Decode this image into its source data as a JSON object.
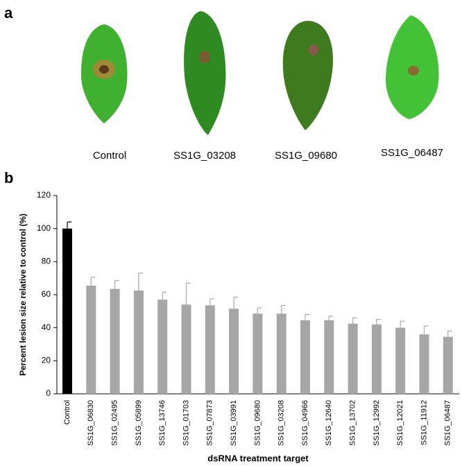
{
  "panel_a": {
    "label": "a",
    "captions": [
      "Control",
      "SS1G_03208",
      "SS1G_09680",
      "SS1G_06487"
    ]
  },
  "panel_b": {
    "label": "b"
  },
  "chart_data": {
    "type": "bar",
    "y_label": "Percent lesion size relative to control (%)",
    "x_label": "dsRNA treatment target",
    "categories": [
      "Control",
      "SS1G_06830",
      "SS1G_02495",
      "SS1G_05899",
      "SS1G_13746",
      "SS1G_01703",
      "SS1G_07873",
      "SS1G_03991",
      "SS1G_09680",
      "SS1G_03208",
      "SS1G_04966",
      "SS1G_12640",
      "SS1G_13702",
      "SS1G_12992",
      "SS1G_12021",
      "SS1G_11912",
      "SS1G_06487"
    ],
    "values": [
      100,
      65.5,
      63.5,
      62.5,
      57,
      54,
      53.5,
      51.5,
      48.5,
      48.5,
      44.5,
      44.5,
      42.5,
      42,
      40,
      36,
      34.5
    ],
    "errors": [
      4,
      5,
      5,
      10.5,
      4.5,
      13,
      4,
      7,
      3.5,
      5,
      3.5,
      2.5,
      3.5,
      3,
      4,
      5,
      3.5
    ],
    "colors": [
      "#000000",
      "#a6a6a6",
      "#a6a6a6",
      "#a6a6a6",
      "#a6a6a6",
      "#a6a6a6",
      "#a6a6a6",
      "#a6a6a6",
      "#a6a6a6",
      "#a6a6a6",
      "#a6a6a6",
      "#a6a6a6",
      "#a6a6a6",
      "#a6a6a6",
      "#a6a6a6",
      "#a6a6a6",
      "#a6a6a6"
    ],
    "ylim": [
      0,
      120
    ],
    "yticks": [
      0,
      20,
      40,
      60,
      80,
      100,
      120
    ]
  }
}
